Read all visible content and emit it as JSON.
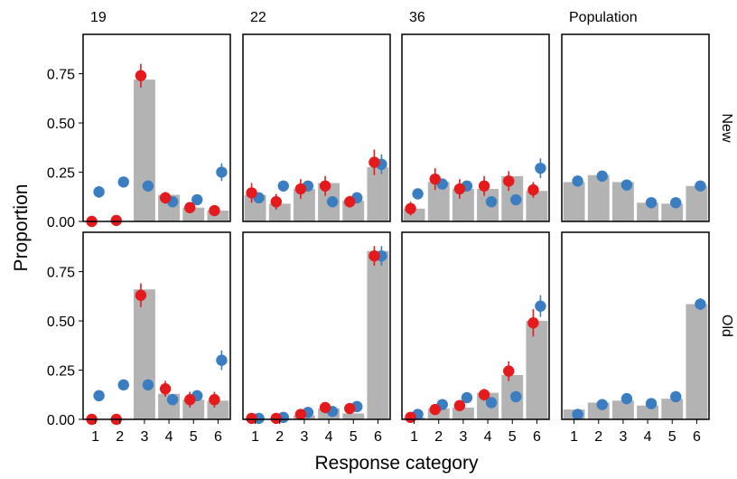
{
  "chart_data": {
    "type": "bar",
    "xlabel": "Response category",
    "ylabel": "Proportion",
    "categories": [
      "1",
      "2",
      "3",
      "4",
      "5",
      "6"
    ],
    "ylim": [
      0,
      0.95
    ],
    "yticks": [
      "0.00",
      "0.25",
      "0.50",
      "0.75"
    ],
    "column_labels": [
      "19",
      "22",
      "36",
      "Population"
    ],
    "row_labels": [
      "New",
      "Old"
    ],
    "colors": {
      "bar": "#b3b3b3",
      "blue": "#3a7dc0",
      "red": "#e41a1c"
    },
    "panels": [
      {
        "row": "New",
        "column": "19",
        "bars": [
          0.0,
          0.0,
          0.72,
          0.135,
          0.07,
          0.055
        ],
        "blue": [
          [
            0.15,
            0.03
          ],
          [
            0.2,
            0.02
          ],
          [
            0.18,
            0.02
          ],
          [
            0.1,
            0.02
          ],
          [
            0.11,
            0.02
          ],
          [
            0.25,
            0.045
          ]
        ],
        "red": [
          [
            0.0,
            0.0
          ],
          [
            0.005,
            0.005
          ],
          [
            0.74,
            0.06
          ],
          [
            0.12,
            0.03
          ],
          [
            0.07,
            0.02
          ],
          [
            0.055,
            0.02
          ]
        ]
      },
      {
        "row": "New",
        "column": "22",
        "bars": [
          0.135,
          0.09,
          0.165,
          0.195,
          0.105,
          0.275
        ],
        "blue": [
          [
            0.12,
            0.02
          ],
          [
            0.18,
            0.02
          ],
          [
            0.18,
            0.02
          ],
          [
            0.1,
            0.02
          ],
          [
            0.12,
            0.02
          ],
          [
            0.29,
            0.05
          ]
        ],
        "red": [
          [
            0.145,
            0.05
          ],
          [
            0.1,
            0.04
          ],
          [
            0.165,
            0.05
          ],
          [
            0.18,
            0.05
          ],
          [
            0.1,
            0.03
          ],
          [
            0.3,
            0.065
          ]
        ]
      },
      {
        "row": "New",
        "column": "36",
        "bars": [
          0.065,
          0.2,
          0.165,
          0.165,
          0.23,
          0.155
        ],
        "blue": [
          [
            0.14,
            0.02
          ],
          [
            0.19,
            0.02
          ],
          [
            0.18,
            0.02
          ],
          [
            0.1,
            0.02
          ],
          [
            0.11,
            0.02
          ],
          [
            0.27,
            0.05
          ]
        ],
        "red": [
          [
            0.065,
            0.035
          ],
          [
            0.215,
            0.055
          ],
          [
            0.165,
            0.05
          ],
          [
            0.18,
            0.05
          ],
          [
            0.205,
            0.05
          ],
          [
            0.16,
            0.04
          ]
        ]
      },
      {
        "row": "New",
        "column": "Population",
        "bars": [
          0.2,
          0.235,
          0.2,
          0.095,
          0.09,
          0.18
        ],
        "blue": [
          [
            0.205,
            0.02
          ],
          [
            0.23,
            0.02
          ],
          [
            0.185,
            0.02
          ],
          [
            0.095,
            0.02
          ],
          [
            0.095,
            0.02
          ],
          [
            0.18,
            0.02
          ]
        ],
        "red": []
      },
      {
        "row": "Old",
        "column": "19",
        "bars": [
          0.0,
          0.0,
          0.66,
          0.13,
          0.1,
          0.095
        ],
        "blue": [
          [
            0.12,
            0.02
          ],
          [
            0.175,
            0.02
          ],
          [
            0.175,
            0.02
          ],
          [
            0.1,
            0.02
          ],
          [
            0.12,
            0.02
          ],
          [
            0.3,
            0.05
          ]
        ],
        "red": [
          [
            0.0,
            0.0
          ],
          [
            0.0,
            0.0
          ],
          [
            0.63,
            0.06
          ],
          [
            0.155,
            0.04
          ],
          [
            0.1,
            0.04
          ],
          [
            0.1,
            0.04
          ]
        ]
      },
      {
        "row": "Old",
        "column": "22",
        "bars": [
          0.005,
          0.005,
          0.02,
          0.055,
          0.03,
          0.855
        ],
        "blue": [
          [
            0.005,
            0.005
          ],
          [
            0.01,
            0.005
          ],
          [
            0.035,
            0.01
          ],
          [
            0.04,
            0.01
          ],
          [
            0.065,
            0.01
          ],
          [
            0.83,
            0.05
          ]
        ],
        "red": [
          [
            0.005,
            0.005
          ],
          [
            0.005,
            0.005
          ],
          [
            0.025,
            0.01
          ],
          [
            0.06,
            0.02
          ],
          [
            0.055,
            0.02
          ],
          [
            0.83,
            0.05
          ]
        ]
      },
      {
        "row": "Old",
        "column": "36",
        "bars": [
          0.01,
          0.055,
          0.06,
          0.135,
          0.225,
          0.5
        ],
        "blue": [
          [
            0.025,
            0.01
          ],
          [
            0.075,
            0.015
          ],
          [
            0.11,
            0.02
          ],
          [
            0.085,
            0.02
          ],
          [
            0.115,
            0.02
          ],
          [
            0.575,
            0.055
          ]
        ],
        "red": [
          [
            0.01,
            0.01
          ],
          [
            0.05,
            0.015
          ],
          [
            0.07,
            0.02
          ],
          [
            0.125,
            0.03
          ],
          [
            0.245,
            0.05
          ],
          [
            0.49,
            0.07
          ]
        ]
      },
      {
        "row": "Old",
        "column": "Population",
        "bars": [
          0.05,
          0.085,
          0.095,
          0.07,
          0.105,
          0.585
        ],
        "blue": [
          [
            0.025,
            0.015
          ],
          [
            0.075,
            0.015
          ],
          [
            0.105,
            0.02
          ],
          [
            0.08,
            0.02
          ],
          [
            0.115,
            0.02
          ],
          [
            0.585,
            0.03
          ]
        ],
        "red": []
      }
    ]
  }
}
